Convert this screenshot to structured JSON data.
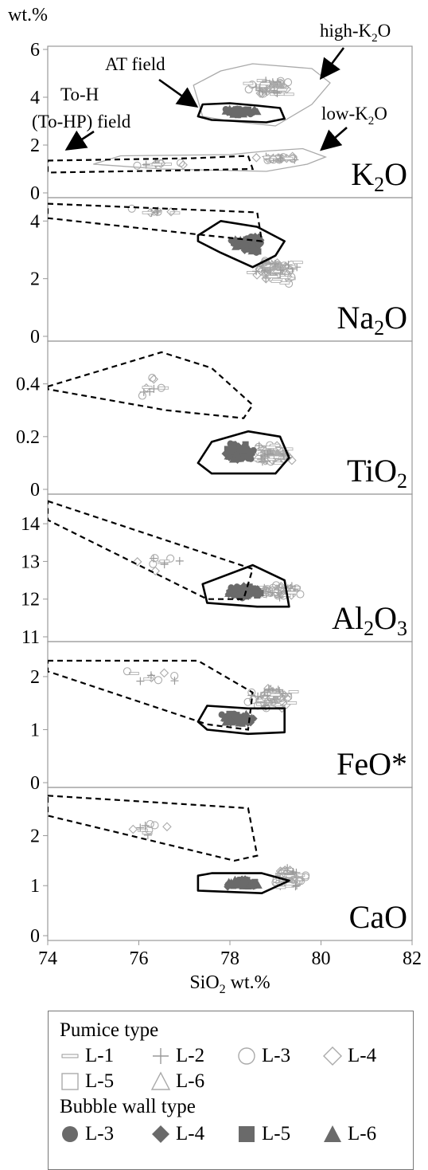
{
  "chart_data": {
    "type": "scatter",
    "xlabel_html": "SiO<tspan baseline-shift='sub' font-size='16'>2</tspan> wt.%",
    "xlabel": "SiO2 wt.%",
    "xlim": [
      74,
      82
    ],
    "x_ticks": [
      "74",
      "76",
      "78",
      "80",
      "82"
    ],
    "y_unit_label": "wt.%",
    "panels": [
      {
        "oxide": "K2O",
        "label_main": "K",
        "label_sub": "2",
        "label_tail": "O",
        "ylim": [
          0,
          6
        ],
        "y_ticks": [
          "0",
          "2",
          "4",
          "6"
        ],
        "annotations": [
          "AT field",
          "To-H",
          "(To-HP) field",
          "high-K2O",
          "low-K2O"
        ],
        "at_field": [
          [
            77.3,
            3.2
          ],
          [
            77.4,
            3.7
          ],
          [
            78,
            3.75
          ],
          [
            78.6,
            3.65
          ],
          [
            79.1,
            3.55
          ],
          [
            79.2,
            3.1
          ],
          [
            78.8,
            2.95
          ],
          [
            77.6,
            3.05
          ]
        ],
        "toh_field": [
          [
            74,
            1.35
          ],
          [
            77.2,
            1.45
          ],
          [
            78.4,
            1.55
          ],
          [
            78.5,
            1.0
          ],
          [
            77.2,
            0.95
          ],
          [
            74,
            0.85
          ]
        ],
        "high_k_field": [
          [
            77.4,
            3.2
          ],
          [
            77.2,
            4.5
          ],
          [
            77.8,
            5.1
          ],
          [
            78.5,
            5.4
          ],
          [
            79.8,
            5.2
          ],
          [
            80.2,
            4.6
          ],
          [
            79.8,
            3.7
          ],
          [
            79.0,
            2.8
          ],
          [
            78.0,
            3.0
          ]
        ],
        "low_k_field": [
          [
            75.0,
            1.2
          ],
          [
            75.6,
            1.55
          ],
          [
            78,
            1.6
          ],
          [
            78.8,
            1.75
          ],
          [
            79.6,
            1.85
          ],
          [
            80.1,
            1.5
          ],
          [
            79.7,
            1.2
          ],
          [
            78.8,
            0.9
          ],
          [
            76.5,
            1.0
          ]
        ]
      },
      {
        "oxide": "Na2O",
        "label_main": "Na",
        "label_sub": "2",
        "label_tail": "O",
        "ylim": [
          0,
          4.7
        ],
        "y_ticks": [
          "0",
          "2",
          "4"
        ],
        "at_field": [
          [
            77.3,
            3.5
          ],
          [
            77.8,
            4.0
          ],
          [
            78.6,
            3.8
          ],
          [
            79.2,
            3.3
          ],
          [
            79.0,
            2.8
          ],
          [
            78.5,
            2.4
          ],
          [
            77.8,
            2.9
          ],
          [
            77.3,
            3.3
          ]
        ],
        "toh_field": [
          [
            74,
            4.6
          ],
          [
            78.6,
            4.3
          ],
          [
            78.7,
            3.3
          ],
          [
            77.5,
            3.5
          ],
          [
            74,
            4.1
          ]
        ]
      },
      {
        "oxide": "TiO2",
        "label_main": "Ti",
        "label_sub": "",
        "label_tail": "O2",
        "ylim": [
          0,
          0.55
        ],
        "y_ticks": [
          "0",
          "0.2",
          "0.4"
        ],
        "at_field": [
          [
            77.3,
            0.1
          ],
          [
            77.6,
            0.18
          ],
          [
            78.4,
            0.22
          ],
          [
            79.1,
            0.2
          ],
          [
            79.3,
            0.12
          ],
          [
            79.0,
            0.06
          ],
          [
            77.6,
            0.06
          ]
        ],
        "toh_field": [
          [
            74,
            0.39
          ],
          [
            76.5,
            0.52
          ],
          [
            77.6,
            0.46
          ],
          [
            78.5,
            0.32
          ],
          [
            78.3,
            0.27
          ],
          [
            76.6,
            0.3
          ],
          [
            74,
            0.38
          ]
        ]
      },
      {
        "oxide": "Al2O3",
        "label_main": "Al",
        "label_sub": "2",
        "label_tail": "O3",
        "ylim": [
          11,
          14.7
        ],
        "y_ticks": [
          "11",
          "12",
          "13",
          "14"
        ],
        "at_field": [
          [
            77.4,
            12.4
          ],
          [
            78.5,
            12.9
          ],
          [
            79.2,
            12.5
          ],
          [
            79.3,
            11.8
          ],
          [
            78.6,
            11.8
          ],
          [
            77.5,
            11.9
          ]
        ],
        "toh_field": [
          [
            74,
            14.6
          ],
          [
            78.5,
            12.8
          ],
          [
            78.3,
            12.0
          ],
          [
            77.5,
            12.0
          ],
          [
            74,
            14.1
          ]
        ]
      },
      {
        "oxide": "FeO*",
        "label_main": "FeO*",
        "label_sub": "",
        "label_tail": "",
        "ylim": [
          0,
          2.6
        ],
        "y_ticks": [
          "0",
          "1",
          "2"
        ],
        "at_field": [
          [
            77.3,
            1.15
          ],
          [
            77.5,
            1.45
          ],
          [
            78.4,
            1.4
          ],
          [
            79.2,
            1.4
          ],
          [
            79.2,
            0.95
          ],
          [
            78.4,
            0.92
          ],
          [
            77.5,
            1.0
          ]
        ],
        "toh_field": [
          [
            74,
            2.3
          ],
          [
            77.3,
            2.3
          ],
          [
            78.5,
            1.7
          ],
          [
            78.4,
            1.0
          ],
          [
            77.5,
            1.1
          ],
          [
            74,
            2.1
          ]
        ]
      },
      {
        "oxide": "CaO",
        "label_main": "CaO",
        "label_sub": "",
        "label_tail": "",
        "ylim": [
          0,
          2.9
        ],
        "y_ticks": [
          "0",
          "1",
          "2"
        ],
        "at_field": [
          [
            77.3,
            1.2
          ],
          [
            77.6,
            1.25
          ],
          [
            78.7,
            1.25
          ],
          [
            79.3,
            1.1
          ],
          [
            78.7,
            0.85
          ],
          [
            77.3,
            0.9
          ]
        ],
        "toh_field": [
          [
            74,
            2.8
          ],
          [
            78.4,
            2.55
          ],
          [
            78.6,
            1.6
          ],
          [
            78.1,
            1.5
          ],
          [
            74,
            2.4
          ]
        ]
      }
    ],
    "legend": {
      "pumice_title": "Pumice type",
      "pumice_items": [
        {
          "symbol": "dash",
          "label": "L-1"
        },
        {
          "symbol": "plus",
          "label": "L-2"
        },
        {
          "symbol": "circle-open",
          "label": "L-3"
        },
        {
          "symbol": "diamond-open",
          "label": "L-4"
        },
        {
          "symbol": "square-open",
          "label": "L-5"
        },
        {
          "symbol": "triangle-open",
          "label": "L-6"
        }
      ],
      "bubble_title": "Bubble wall type",
      "bubble_items": [
        {
          "symbol": "circle-filled",
          "label": "L-3"
        },
        {
          "symbol": "diamond-filled",
          "label": "L-4"
        },
        {
          "symbol": "square-filled",
          "label": "L-5"
        },
        {
          "symbol": "triangle-filled",
          "label": "L-6"
        }
      ]
    },
    "colors": {
      "open_marker": "#aaaaaa",
      "filled_marker": "#666666",
      "field_line": "#000000"
    }
  }
}
